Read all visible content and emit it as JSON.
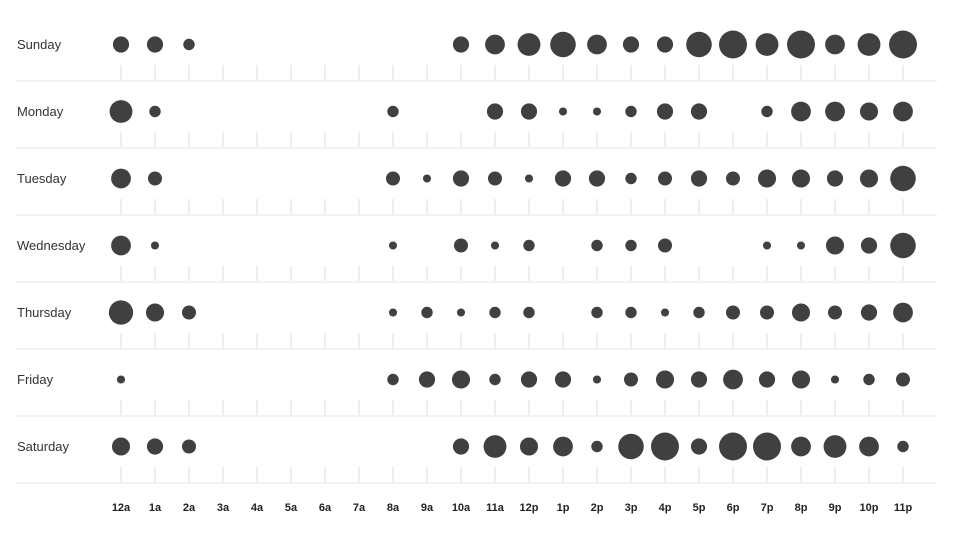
{
  "chart_data": {
    "type": "scatter",
    "title": "",
    "xlabel": "",
    "ylabel": "",
    "days": [
      "Sunday",
      "Monday",
      "Tuesday",
      "Wednesday",
      "Thursday",
      "Friday",
      "Saturday"
    ],
    "hours": [
      "12a",
      "1a",
      "2a",
      "3a",
      "4a",
      "5a",
      "6a",
      "7a",
      "8a",
      "9a",
      "10a",
      "11a",
      "12p",
      "1p",
      "2p",
      "3p",
      "4p",
      "5p",
      "6p",
      "7p",
      "8p",
      "9p",
      "10p",
      "11p"
    ],
    "size_scale_max": 6,
    "values": [
      [
        2,
        2,
        1,
        0,
        0,
        0,
        0,
        0,
        0,
        0,
        2,
        3,
        4,
        5,
        3,
        2,
        2,
        5,
        6,
        4,
        6,
        3,
        4,
        6
      ],
      [
        4,
        1,
        0,
        0,
        0,
        0,
        0,
        0,
        1,
        0,
        0,
        2,
        2,
        0.5,
        0.5,
        1,
        2,
        2,
        0,
        1,
        3,
        3,
        2.5,
        3
      ],
      [
        3,
        1.5,
        0,
        0,
        0,
        0,
        0,
        0,
        1.5,
        0.5,
        2,
        1.5,
        0.5,
        2,
        2,
        1,
        1.5,
        2,
        1.5,
        2.5,
        2.5,
        2,
        2.5,
        5
      ],
      [
        3,
        0.5,
        0,
        0,
        0,
        0,
        0,
        0,
        0.5,
        0,
        1.5,
        0.5,
        1,
        0,
        1,
        1,
        1.5,
        0,
        0,
        0.5,
        0.5,
        2.5,
        2,
        5
      ],
      [
        4.5,
        2.5,
        1.5,
        0,
        0,
        0,
        0,
        0,
        0.5,
        1,
        0.5,
        1,
        1,
        0,
        1,
        1,
        0.5,
        1,
        1.5,
        1.5,
        2.5,
        1.5,
        2,
        3
      ],
      [
        0.5,
        0,
        0,
        0,
        0,
        0,
        0,
        0,
        1,
        2,
        2.5,
        1,
        2,
        2,
        0.5,
        1.5,
        2.5,
        2,
        3,
        2,
        2.5,
        0.5,
        1,
        1.5
      ],
      [
        2.5,
        2,
        1.5,
        0,
        0,
        0,
        0,
        0,
        0,
        0,
        2,
        4,
        2.5,
        3,
        1,
        5,
        6,
        2,
        6,
        6,
        3,
        4,
        3,
        1
      ]
    ]
  },
  "colors": {
    "dot": "#404040",
    "row_line": "#e6e6e6",
    "tick": "#dddddd"
  }
}
